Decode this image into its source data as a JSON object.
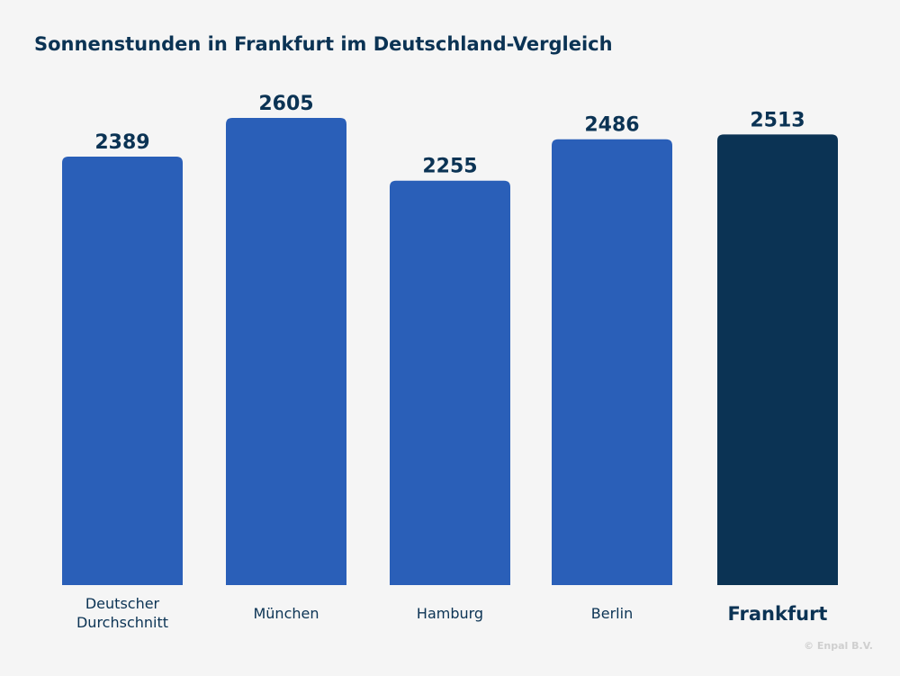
{
  "chart_data": {
    "type": "bar",
    "title": "Sonnenstunden in Frankfurt im Deutschland-Vergleich",
    "categories": [
      "Deutscher Durchschnitt",
      "München",
      "Hamburg",
      "Berlin",
      "Frankfurt"
    ],
    "category_lines": [
      [
        "Deutscher",
        "Durchschnitt"
      ],
      [
        "München"
      ],
      [
        "Hamburg"
      ],
      [
        "Berlin"
      ],
      [
        "Frankfurt"
      ]
    ],
    "values": [
      2389,
      2605,
      2255,
      2486,
      2513
    ],
    "highlight": "Frankfurt",
    "colors": {
      "bar": "#2a5fb8",
      "highlight": "#0b3354",
      "text": "#0b3354",
      "background": "#f5f5f5"
    },
    "ylim": [
      0,
      2605
    ],
    "grid": false,
    "xlabel": "",
    "ylabel": ""
  },
  "credit": "© Enpal B.V."
}
